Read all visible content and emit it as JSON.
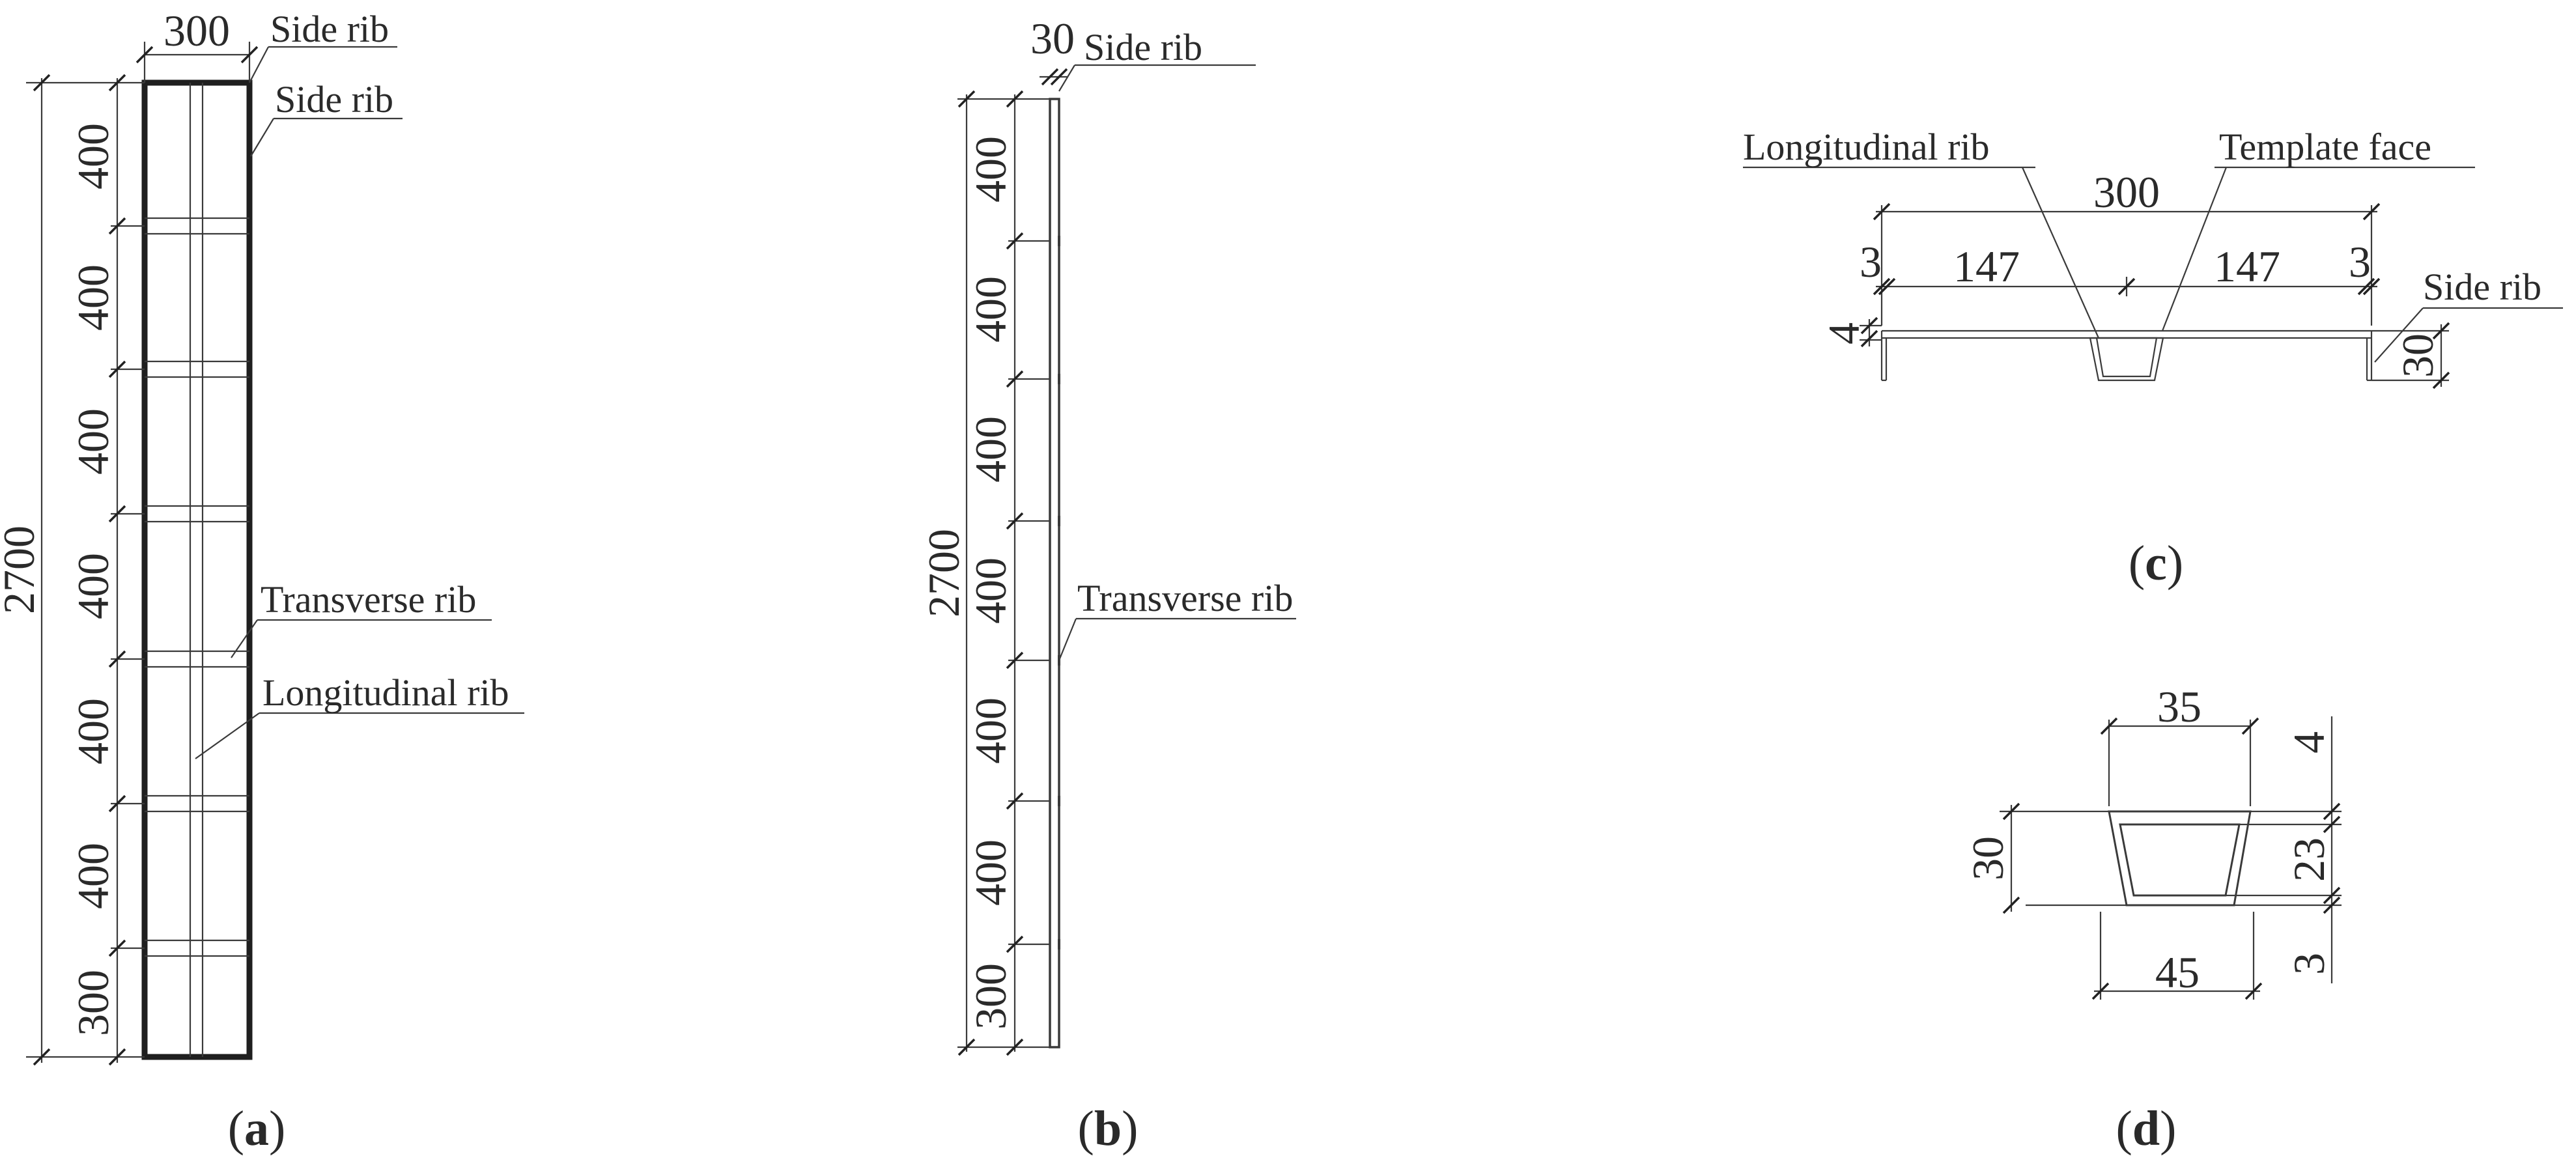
{
  "panel_a": {
    "caption_open": "(",
    "caption_letter": "a",
    "caption_close": ")",
    "width_dim": "300",
    "total_height_dim": "2700",
    "segment_dims": [
      "400",
      "400",
      "400",
      "400",
      "400",
      "400",
      "300"
    ],
    "label_side_rib_top": "Side rib",
    "label_side_rib_right": "Side rib",
    "label_transverse_rib": "Transverse rib",
    "label_longitudinal_rib": "Longitudinal rib"
  },
  "panel_b": {
    "caption_open": "(",
    "caption_letter": "b",
    "caption_close": ")",
    "thickness_dim": "30",
    "total_height_dim": "2700",
    "segment_dims": [
      "400",
      "400",
      "400",
      "400",
      "400",
      "400",
      "300"
    ],
    "label_side_rib": "Side rib",
    "label_transverse_rib": "Transverse rib"
  },
  "panel_c": {
    "caption_open": "(",
    "caption_letter": "c",
    "caption_close": ")",
    "label_longitudinal_rib": "Longitudinal rib",
    "label_template_face": "Template face",
    "label_side_rib": "Side rib",
    "width_dim": "300",
    "left_edge_dim": "3",
    "left_half_dim": "147",
    "right_half_dim": "147",
    "right_edge_dim": "3",
    "face_thickness_dim": "4",
    "rib_height_dim": "30"
  },
  "panel_d": {
    "caption_open": "(",
    "caption_letter": "d",
    "caption_close": ")",
    "top_width_dim": "35",
    "bottom_width_dim": "45",
    "height_dim": "30",
    "top_thickness_dim": "4",
    "inner_height_dim": "23",
    "bottom_thickness_dim": "3"
  }
}
